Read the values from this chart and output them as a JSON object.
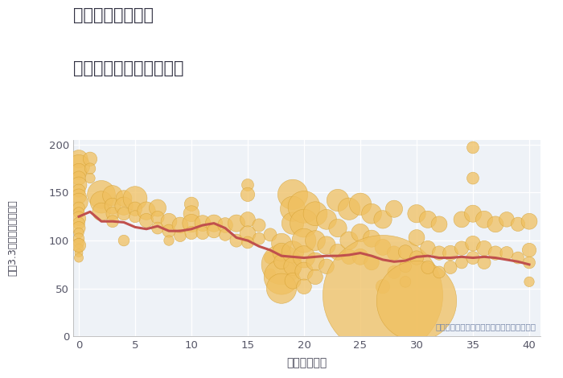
{
  "title_line1": "神奈川県西谷駅の",
  "title_line2": "築年数別中古戸建て価格",
  "xlabel": "築年数（年）",
  "ylabel": "坪（3.3㎡）単価（万円）",
  "annotation": "円の大きさは、取引のあった物件面積を示す",
  "xlim": [
    -0.5,
    41
  ],
  "ylim": [
    0,
    205
  ],
  "xticks": [
    0,
    5,
    10,
    15,
    20,
    25,
    30,
    35,
    40
  ],
  "yticks": [
    0,
    50,
    100,
    150,
    200
  ],
  "bg_color": "#eef2f7",
  "scatter_color": "#f0c060",
  "scatter_edge_color": "#d4a030",
  "line_color": "#c0504d",
  "scatter_points": [
    [
      0,
      185,
      18
    ],
    [
      0,
      178,
      22
    ],
    [
      0,
      172,
      16
    ],
    [
      0,
      165,
      14
    ],
    [
      0,
      158,
      16
    ],
    [
      0,
      152,
      13
    ],
    [
      0,
      146,
      15
    ],
    [
      0,
      140,
      18
    ],
    [
      0,
      134,
      12
    ],
    [
      0,
      129,
      11
    ],
    [
      0,
      123,
      14
    ],
    [
      0,
      118,
      12
    ],
    [
      0,
      113,
      13
    ],
    [
      0,
      108,
      10
    ],
    [
      0,
      102,
      11
    ],
    [
      0,
      97,
      10
    ],
    [
      0,
      92,
      9
    ],
    [
      0,
      87,
      8
    ],
    [
      0,
      82,
      9
    ],
    [
      0,
      95,
      14
    ],
    [
      1,
      185,
      14
    ],
    [
      1,
      175,
      11
    ],
    [
      1,
      165,
      10
    ],
    [
      2,
      148,
      28
    ],
    [
      2,
      140,
      22
    ],
    [
      2,
      130,
      18
    ],
    [
      3,
      147,
      20
    ],
    [
      3,
      136,
      16
    ],
    [
      3,
      128,
      13
    ],
    [
      3,
      120,
      12
    ],
    [
      4,
      144,
      16
    ],
    [
      4,
      136,
      18
    ],
    [
      4,
      128,
      13
    ],
    [
      4,
      100,
      11
    ],
    [
      5,
      144,
      24
    ],
    [
      5,
      133,
      14
    ],
    [
      5,
      125,
      12
    ],
    [
      6,
      131,
      18
    ],
    [
      6,
      121,
      14
    ],
    [
      7,
      134,
      17
    ],
    [
      7,
      124,
      13
    ],
    [
      7,
      113,
      12
    ],
    [
      8,
      120,
      16
    ],
    [
      8,
      110,
      13
    ],
    [
      8,
      100,
      10
    ],
    [
      9,
      116,
      16
    ],
    [
      9,
      105,
      12
    ],
    [
      10,
      138,
      14
    ],
    [
      10,
      128,
      16
    ],
    [
      10,
      118,
      18
    ],
    [
      10,
      108,
      13
    ],
    [
      11,
      118,
      16
    ],
    [
      11,
      108,
      13
    ],
    [
      12,
      118,
      17
    ],
    [
      12,
      110,
      14
    ],
    [
      13,
      116,
      15
    ],
    [
      13,
      106,
      12
    ],
    [
      14,
      118,
      17
    ],
    [
      14,
      100,
      13
    ],
    [
      15,
      158,
      12
    ],
    [
      15,
      148,
      14
    ],
    [
      15,
      122,
      15
    ],
    [
      15,
      107,
      16
    ],
    [
      15,
      98,
      12
    ],
    [
      16,
      116,
      13
    ],
    [
      16,
      102,
      12
    ],
    [
      17,
      106,
      13
    ],
    [
      17,
      82,
      12
    ],
    [
      17,
      65,
      11
    ],
    [
      18,
      75,
      40
    ],
    [
      18,
      62,
      35
    ],
    [
      18,
      50,
      30
    ],
    [
      18,
      97,
      20
    ],
    [
      18,
      88,
      18
    ],
    [
      18,
      78,
      15
    ],
    [
      19,
      148,
      30
    ],
    [
      19,
      133,
      25
    ],
    [
      19,
      118,
      22
    ],
    [
      19,
      88,
      22
    ],
    [
      19,
      73,
      18
    ],
    [
      19,
      58,
      16
    ],
    [
      20,
      135,
      32
    ],
    [
      20,
      118,
      28
    ],
    [
      20,
      100,
      24
    ],
    [
      20,
      83,
      22
    ],
    [
      20,
      68,
      18
    ],
    [
      20,
      52,
      15
    ],
    [
      21,
      128,
      24
    ],
    [
      21,
      100,
      20
    ],
    [
      21,
      78,
      18
    ],
    [
      21,
      62,
      15
    ],
    [
      22,
      122,
      20
    ],
    [
      22,
      95,
      18
    ],
    [
      22,
      73,
      15
    ],
    [
      23,
      142,
      22
    ],
    [
      23,
      113,
      18
    ],
    [
      23,
      88,
      16
    ],
    [
      24,
      133,
      22
    ],
    [
      24,
      100,
      18
    ],
    [
      24,
      83,
      15
    ],
    [
      25,
      138,
      22
    ],
    [
      25,
      108,
      18
    ],
    [
      25,
      83,
      16
    ],
    [
      26,
      128,
      20
    ],
    [
      26,
      102,
      17
    ],
    [
      26,
      77,
      15
    ],
    [
      27,
      122,
      18
    ],
    [
      27,
      93,
      16
    ],
    [
      27,
      52,
      14
    ],
    [
      28,
      133,
      17
    ],
    [
      28,
      87,
      14
    ],
    [
      28,
      67,
      13
    ],
    [
      27,
      43,
      120
    ],
    [
      29,
      88,
      14
    ],
    [
      29,
      73,
      12
    ],
    [
      29,
      57,
      11
    ],
    [
      30,
      128,
      18
    ],
    [
      30,
      103,
      16
    ],
    [
      30,
      82,
      14
    ],
    [
      30,
      37,
      80
    ],
    [
      31,
      122,
      17
    ],
    [
      31,
      92,
      15
    ],
    [
      31,
      72,
      13
    ],
    [
      32,
      117,
      16
    ],
    [
      32,
      87,
      14
    ],
    [
      32,
      67,
      12
    ],
    [
      33,
      87,
      15
    ],
    [
      33,
      72,
      13
    ],
    [
      34,
      122,
      16
    ],
    [
      34,
      92,
      14
    ],
    [
      34,
      77,
      12
    ],
    [
      35,
      197,
      12
    ],
    [
      35,
      165,
      12
    ],
    [
      35,
      128,
      17
    ],
    [
      35,
      97,
      15
    ],
    [
      35,
      82,
      13
    ],
    [
      36,
      122,
      17
    ],
    [
      36,
      92,
      15
    ],
    [
      36,
      77,
      13
    ],
    [
      37,
      117,
      16
    ],
    [
      37,
      87,
      14
    ],
    [
      38,
      122,
      15
    ],
    [
      38,
      87,
      13
    ],
    [
      39,
      117,
      14
    ],
    [
      39,
      82,
      12
    ],
    [
      40,
      120,
      16
    ],
    [
      40,
      90,
      14
    ],
    [
      40,
      77,
      12
    ],
    [
      40,
      57,
      10
    ]
  ],
  "line_points": [
    [
      0,
      125
    ],
    [
      1,
      130
    ],
    [
      2,
      120
    ],
    [
      3,
      120
    ],
    [
      4,
      119
    ],
    [
      5,
      114
    ],
    [
      6,
      112
    ],
    [
      7,
      115
    ],
    [
      8,
      110
    ],
    [
      9,
      110
    ],
    [
      10,
      112
    ],
    [
      11,
      116
    ],
    [
      12,
      118
    ],
    [
      13,
      113
    ],
    [
      14,
      103
    ],
    [
      15,
      100
    ],
    [
      16,
      94
    ],
    [
      17,
      90
    ],
    [
      18,
      84
    ],
    [
      19,
      83
    ],
    [
      20,
      82
    ],
    [
      21,
      83
    ],
    [
      22,
      84
    ],
    [
      23,
      84
    ],
    [
      24,
      85
    ],
    [
      25,
      87
    ],
    [
      26,
      84
    ],
    [
      27,
      80
    ],
    [
      28,
      78
    ],
    [
      29,
      79
    ],
    [
      30,
      83
    ],
    [
      31,
      84
    ],
    [
      32,
      82
    ],
    [
      33,
      82
    ],
    [
      34,
      83
    ],
    [
      35,
      82
    ],
    [
      36,
      83
    ],
    [
      37,
      82
    ],
    [
      38,
      80
    ],
    [
      39,
      78
    ],
    [
      40,
      75
    ]
  ]
}
